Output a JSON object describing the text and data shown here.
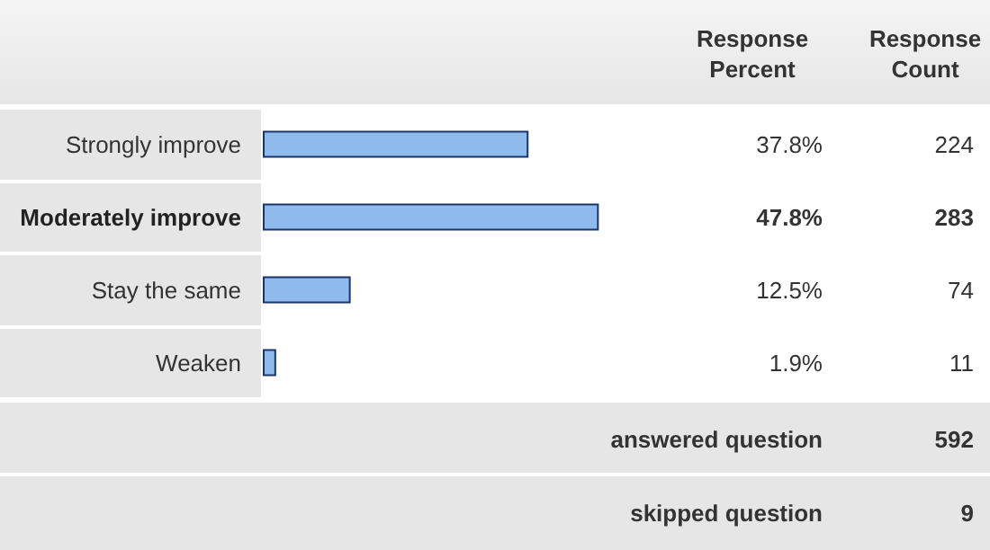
{
  "chart_data": {
    "type": "bar",
    "orientation": "horizontal",
    "xlabel": "Response Percent",
    "categories": [
      "Strongly improve",
      "Moderately improve",
      "Stay the same",
      "Weaken"
    ],
    "values": [
      37.8,
      47.8,
      12.5,
      1.9
    ],
    "color": "#8fbbec",
    "value_labels": [
      "37.8%",
      "47.8%",
      "12.5%",
      "1.9%"
    ],
    "annotations": [
      "Response Count",
      "224",
      "283",
      "74",
      "11",
      "answered question",
      "592",
      "skipped question",
      "9"
    ]
  }
}
